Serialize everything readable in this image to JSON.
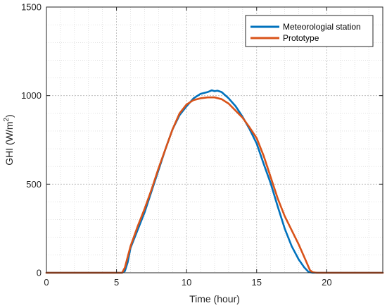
{
  "chart_data": {
    "type": "line",
    "title": "",
    "xlabel": "Time (hour)",
    "ylabel_main": "GHI (W/m",
    "ylabel_sup": "2",
    "ylabel_close": ")",
    "xlim": [
      0,
      24
    ],
    "ylim": [
      0,
      1500
    ],
    "xticks": [
      0,
      5,
      10,
      15,
      20
    ],
    "yticks": [
      0,
      500,
      1000,
      1500
    ],
    "grid": true,
    "grid_style": "dotted",
    "legend_position": "top-right",
    "series": [
      {
        "name": "Meteorologial station",
        "color": "#0072BD",
        "x": [
          0,
          5.4,
          5.6,
          5.8,
          6,
          6.5,
          7,
          7.5,
          8,
          8.5,
          9,
          9.5,
          10,
          10.5,
          11,
          11.5,
          11.8,
          12,
          12.2,
          12.5,
          13,
          13.5,
          14,
          14.5,
          15,
          15.5,
          16,
          16.5,
          17,
          17.5,
          18,
          18.4,
          18.7,
          19,
          19.2,
          24
        ],
        "y": [
          0,
          0,
          10,
          60,
          140,
          240,
          340,
          460,
          580,
          700,
          810,
          890,
          940,
          985,
          1010,
          1020,
          1030,
          1025,
          1028,
          1020,
          985,
          940,
          880,
          810,
          730,
          615,
          505,
          375,
          250,
          150,
          75,
          30,
          5,
          0,
          0,
          0
        ]
      },
      {
        "name": "Prototype",
        "color": "#D95319",
        "x": [
          0,
          5.4,
          5.6,
          5.8,
          6,
          6.5,
          7,
          7.5,
          8,
          8.5,
          9,
          9.5,
          10,
          10.5,
          11,
          11.5,
          12,
          12.5,
          13,
          13.5,
          14,
          14.5,
          15,
          15.5,
          16,
          16.5,
          17,
          17.5,
          18,
          18.5,
          18.8,
          19,
          19.3,
          24
        ],
        "y": [
          0,
          0,
          30,
          90,
          150,
          260,
          360,
          470,
          590,
          700,
          810,
          900,
          950,
          975,
          985,
          990,
          990,
          980,
          955,
          915,
          875,
          820,
          760,
          660,
          540,
          420,
          320,
          240,
          160,
          70,
          15,
          3,
          0,
          0
        ]
      }
    ]
  }
}
